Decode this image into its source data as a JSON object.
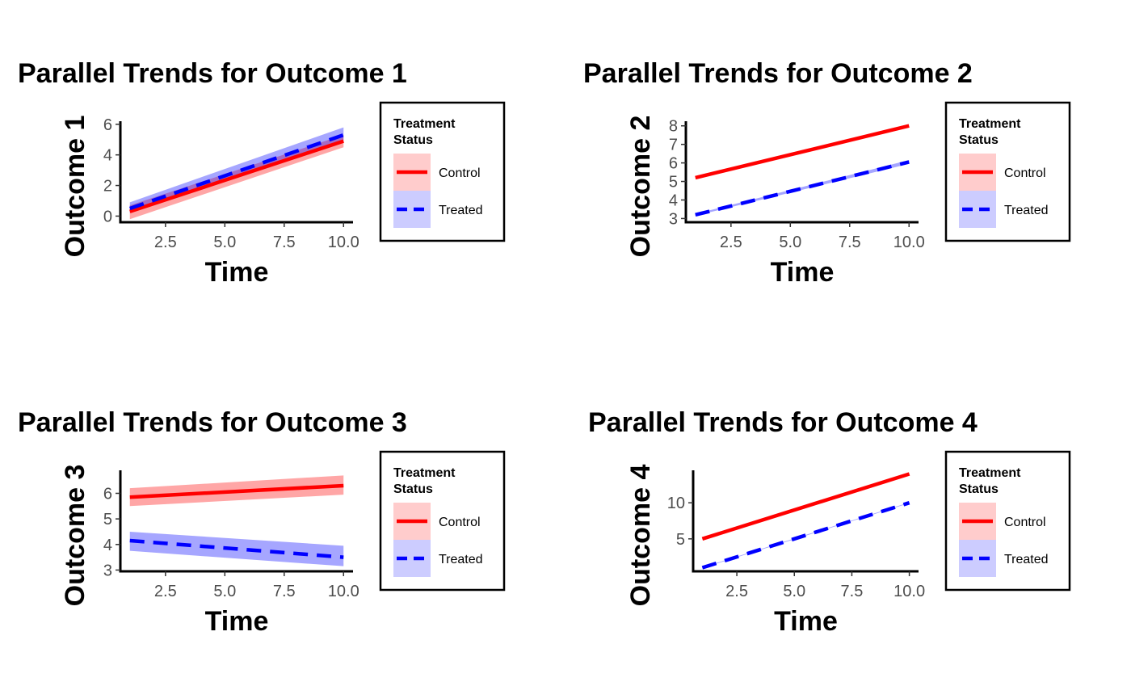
{
  "chart_data": [
    {
      "type": "line",
      "title": "Parallel Trends for Outcome 1",
      "xlabel": "Time",
      "ylabel": "Outcome 1",
      "xlim": [
        0.6,
        10.4
      ],
      "ylim": [
        -0.4,
        6.2
      ],
      "xticks": [
        2.5,
        5.0,
        7.5,
        10.0
      ],
      "xtick_labels": [
        "2.5",
        "5.0",
        "7.5",
        "10.0"
      ],
      "yticks": [
        0,
        2,
        4,
        6
      ],
      "ytick_labels": [
        "0",
        "2",
        "4",
        "6"
      ],
      "grid": false,
      "legend": {
        "title_lines": [
          "Treatment",
          "Status"
        ],
        "position": "right"
      },
      "series": [
        {
          "name": "Control",
          "color": "#ff0000",
          "fill": "#ff0000",
          "fill_opacity": 0.35,
          "dash": false,
          "x": [
            1,
            10
          ],
          "y": [
            0.3,
            4.9
          ],
          "lower": [
            -0.2,
            4.5
          ],
          "upper": [
            0.7,
            5.3
          ]
        },
        {
          "name": "Treated",
          "color": "#0000ff",
          "fill": "#0000ff",
          "fill_opacity": 0.35,
          "dash": true,
          "x": [
            1,
            10
          ],
          "y": [
            0.5,
            5.3
          ],
          "lower": [
            0.2,
            4.9
          ],
          "upper": [
            0.9,
            5.8
          ]
        }
      ]
    },
    {
      "type": "line",
      "title": "Parallel Trends for Outcome 2",
      "xlabel": "Time",
      "ylabel": "Outcome 2",
      "xlim": [
        0.6,
        10.4
      ],
      "ylim": [
        2.8,
        8.25
      ],
      "xticks": [
        2.5,
        5.0,
        7.5,
        10.0
      ],
      "xtick_labels": [
        "2.5",
        "5.0",
        "7.5",
        "10.0"
      ],
      "yticks": [
        3,
        4,
        5,
        6,
        7,
        8
      ],
      "ytick_labels": [
        "3",
        "4",
        "5",
        "6",
        "7",
        "8"
      ],
      "grid": false,
      "legend": {
        "title_lines": [
          "Treatment",
          "Status"
        ],
        "position": "right"
      },
      "series": [
        {
          "name": "Control",
          "color": "#ff0000",
          "fill": "#ff0000",
          "fill_opacity": 0.35,
          "dash": false,
          "x": [
            1,
            10
          ],
          "y": [
            5.2,
            8.0
          ],
          "lower": [
            5.2,
            8.0
          ],
          "upper": [
            5.2,
            8.0
          ]
        },
        {
          "name": "Treated",
          "color": "#0000ff",
          "fill": "#0000ff",
          "fill_opacity": 0.35,
          "dash": true,
          "x": [
            1,
            10
          ],
          "y": [
            3.2,
            6.05
          ],
          "lower": [
            3.15,
            5.95
          ],
          "upper": [
            3.25,
            6.15
          ]
        }
      ]
    },
    {
      "type": "line",
      "title": "Parallel Trends for Outcome 3",
      "xlabel": "Time",
      "ylabel": "Outcome 3",
      "xlim": [
        0.6,
        10.4
      ],
      "ylim": [
        2.95,
        6.9
      ],
      "xticks": [
        2.5,
        5.0,
        7.5,
        10.0
      ],
      "xtick_labels": [
        "2.5",
        "5.0",
        "7.5",
        "10.0"
      ],
      "yticks": [
        3,
        4,
        5,
        6
      ],
      "ytick_labels": [
        "3",
        "4",
        "5",
        "6"
      ],
      "grid": false,
      "legend": {
        "title_lines": [
          "Treatment",
          "Status"
        ],
        "position": "right"
      },
      "series": [
        {
          "name": "Control",
          "color": "#ff0000",
          "fill": "#ff0000",
          "fill_opacity": 0.35,
          "dash": false,
          "x": [
            1,
            10
          ],
          "y": [
            5.85,
            6.3
          ],
          "lower": [
            5.5,
            5.95
          ],
          "upper": [
            6.2,
            6.7
          ]
        },
        {
          "name": "Treated",
          "color": "#0000ff",
          "fill": "#0000ff",
          "fill_opacity": 0.35,
          "dash": true,
          "x": [
            1,
            10
          ],
          "y": [
            4.15,
            3.5
          ],
          "lower": [
            3.75,
            3.15
          ],
          "upper": [
            4.5,
            3.95
          ]
        }
      ]
    },
    {
      "type": "line",
      "title": "Parallel Trends for Outcome 4",
      "xlabel": "Time",
      "ylabel": "Outcome 4",
      "xlim": [
        0.6,
        10.4
      ],
      "ylim": [
        0.5,
        14.5
      ],
      "xticks": [
        2.5,
        5.0,
        7.5,
        10.0
      ],
      "xtick_labels": [
        "2.5",
        "5.0",
        "7.5",
        "10.0"
      ],
      "yticks": [
        5,
        10
      ],
      "ytick_labels": [
        "5",
        "10"
      ],
      "grid": false,
      "legend": {
        "title_lines": [
          "Treatment",
          "Status"
        ],
        "position": "right"
      },
      "series": [
        {
          "name": "Control",
          "color": "#ff0000",
          "fill": "#ff0000",
          "fill_opacity": 0.35,
          "dash": false,
          "x": [
            1,
            10
          ],
          "y": [
            5.0,
            14.0
          ],
          "lower": [
            5.0,
            14.0
          ],
          "upper": [
            5.0,
            14.0
          ]
        },
        {
          "name": "Treated",
          "color": "#0000ff",
          "fill": "#0000ff",
          "fill_opacity": 0.35,
          "dash": true,
          "x": [
            1,
            10
          ],
          "y": [
            1.0,
            10.0
          ],
          "lower": [
            0.95,
            9.95
          ],
          "upper": [
            1.05,
            10.05
          ]
        }
      ]
    }
  ]
}
